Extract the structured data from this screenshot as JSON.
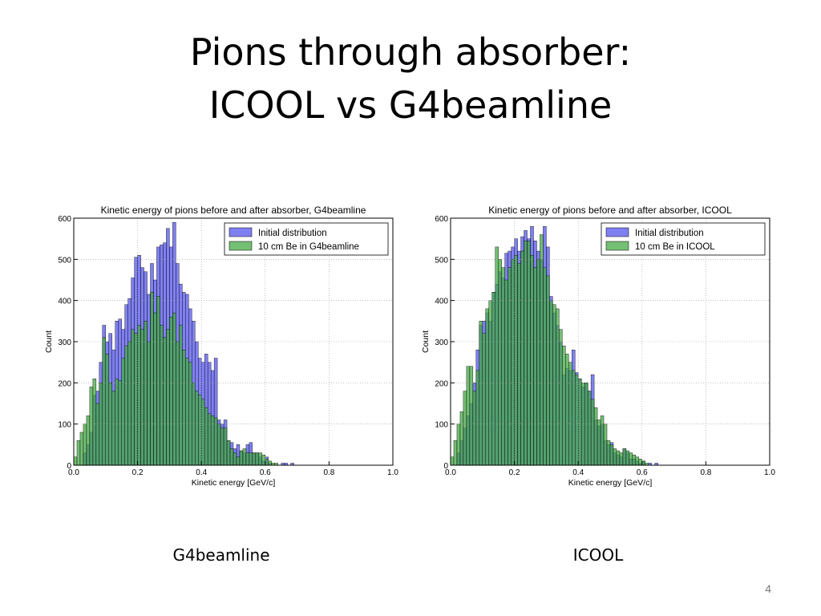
{
  "slide": {
    "title_line1": "Pions through absorber:",
    "title_line2": "ICOOL vs G4beamline",
    "captions": [
      "G4beamline",
      "ICOOL"
    ],
    "page_number": "4"
  },
  "chart_data": [
    {
      "type": "bar",
      "title": "Kinetic energy of pions before and after absorber, G4beamline",
      "xlabel": "Kinetic energy [GeV/c]",
      "ylabel": "Count",
      "xlim": [
        0.0,
        1.0
      ],
      "ylim": [
        0,
        600
      ],
      "xticks": [
        "0.0",
        "0.2",
        "0.4",
        "0.6",
        "0.8",
        "1.0"
      ],
      "yticks": [
        "0",
        "100",
        "200",
        "300",
        "400",
        "500",
        "600"
      ],
      "grid": true,
      "legend_position": "top-right",
      "bin_width": 0.01,
      "x": [
        0.005,
        0.015,
        0.025,
        0.035,
        0.045,
        0.055,
        0.065,
        0.075,
        0.085,
        0.095,
        0.105,
        0.115,
        0.125,
        0.135,
        0.145,
        0.155,
        0.165,
        0.175,
        0.185,
        0.195,
        0.205,
        0.215,
        0.225,
        0.235,
        0.245,
        0.255,
        0.265,
        0.275,
        0.285,
        0.295,
        0.305,
        0.315,
        0.325,
        0.335,
        0.345,
        0.355,
        0.365,
        0.375,
        0.385,
        0.395,
        0.405,
        0.415,
        0.425,
        0.435,
        0.445,
        0.455,
        0.465,
        0.475,
        0.485,
        0.495,
        0.505,
        0.515,
        0.525,
        0.535,
        0.545,
        0.555,
        0.565,
        0.575,
        0.585,
        0.595,
        0.605,
        0.615,
        0.625,
        0.635,
        0.645,
        0.655,
        0.665,
        0.675,
        0.685,
        0.695,
        0.705,
        0.715,
        0.725,
        0.735,
        0.745,
        0.755,
        0.765,
        0.775,
        0.785,
        0.795
      ],
      "series": [
        {
          "name": "Initial distribution",
          "color": "#5555ee",
          "values": [
            0,
            0,
            0,
            30,
            50,
            80,
            170,
            180,
            250,
            340,
            300,
            320,
            280,
            350,
            355,
            330,
            390,
            405,
            455,
            505,
            510,
            480,
            470,
            415,
            490,
            450,
            530,
            535,
            540,
            575,
            530,
            590,
            490,
            440,
            420,
            415,
            380,
            350,
            300,
            260,
            250,
            270,
            250,
            230,
            260,
            110,
            100,
            110,
            60,
            55,
            40,
            50,
            35,
            30,
            50,
            55,
            30,
            30,
            20,
            10,
            20,
            5,
            0,
            0,
            0,
            5,
            5,
            0,
            5,
            0,
            0,
            0,
            0,
            0,
            0,
            0,
            0,
            0,
            0,
            0
          ]
        },
        {
          "name": "10 cm Be in G4beamline",
          "color": "#44aa44",
          "values": [
            20,
            60,
            80,
            100,
            120,
            190,
            210,
            150,
            200,
            310,
            270,
            200,
            180,
            210,
            205,
            260,
            290,
            300,
            330,
            320,
            340,
            330,
            350,
            300,
            420,
            370,
            410,
            340,
            310,
            330,
            360,
            370,
            300,
            340,
            280,
            260,
            250,
            200,
            180,
            170,
            160,
            140,
            125,
            120,
            115,
            100,
            90,
            90,
            60,
            40,
            30,
            20,
            35,
            40,
            30,
            30,
            30,
            30,
            30,
            25,
            15,
            10,
            5,
            5,
            0,
            0,
            0,
            0,
            0,
            0,
            0,
            0,
            0,
            0,
            0,
            0,
            0,
            0,
            0,
            0
          ]
        }
      ]
    },
    {
      "type": "bar",
      "title": "Kinetic energy of pions before and after absorber, ICOOL",
      "xlabel": "Kinetic energy [GeV/c]",
      "ylabel": "Count",
      "xlim": [
        0.0,
        1.0
      ],
      "ylim": [
        0,
        600
      ],
      "xticks": [
        "0.0",
        "0.2",
        "0.4",
        "0.6",
        "0.8",
        "1.0"
      ],
      "yticks": [
        "0",
        "100",
        "200",
        "300",
        "400",
        "500",
        "600"
      ],
      "grid": true,
      "legend_position": "top-right",
      "bin_width": 0.01,
      "x": [
        0.005,
        0.015,
        0.025,
        0.035,
        0.045,
        0.055,
        0.065,
        0.075,
        0.085,
        0.095,
        0.105,
        0.115,
        0.125,
        0.135,
        0.145,
        0.155,
        0.165,
        0.175,
        0.185,
        0.195,
        0.205,
        0.215,
        0.225,
        0.235,
        0.245,
        0.255,
        0.265,
        0.275,
        0.285,
        0.295,
        0.305,
        0.315,
        0.325,
        0.335,
        0.345,
        0.355,
        0.365,
        0.375,
        0.385,
        0.395,
        0.405,
        0.415,
        0.425,
        0.435,
        0.445,
        0.455,
        0.465,
        0.475,
        0.485,
        0.495,
        0.505,
        0.515,
        0.525,
        0.535,
        0.545,
        0.555,
        0.565,
        0.575,
        0.585,
        0.595,
        0.605,
        0.615,
        0.625,
        0.635,
        0.645,
        0.655,
        0.665,
        0.675,
        0.685,
        0.695,
        0.705,
        0.715,
        0.725,
        0.735,
        0.745,
        0.755,
        0.765,
        0.775,
        0.785,
        0.795
      ],
      "series": [
        {
          "name": "Initial distribution",
          "color": "#5555ee",
          "values": [
            0,
            0,
            30,
            60,
            90,
            120,
            150,
            200,
            280,
            340,
            350,
            370,
            350,
            420,
            440,
            470,
            455,
            515,
            520,
            530,
            550,
            520,
            555,
            570,
            550,
            580,
            545,
            520,
            500,
            580,
            530,
            410,
            370,
            340,
            300,
            220,
            235,
            230,
            280,
            225,
            210,
            190,
            200,
            180,
            220,
            110,
            95,
            100,
            60,
            50,
            55,
            30,
            25,
            20,
            40,
            30,
            15,
            15,
            10,
            5,
            10,
            0,
            5,
            0,
            5,
            0,
            0,
            0,
            0,
            0,
            0,
            0,
            0,
            0,
            0,
            0,
            0,
            0,
            0,
            0
          ]
        },
        {
          "name": "10 cm Be in ICOOL",
          "color": "#44aa44",
          "values": [
            20,
            60,
            100,
            130,
            180,
            240,
            240,
            180,
            230,
            350,
            320,
            380,
            400,
            420,
            530,
            500,
            480,
            450,
            480,
            500,
            510,
            490,
            520,
            545,
            545,
            510,
            480,
            500,
            560,
            480,
            460,
            400,
            390,
            380,
            330,
            290,
            270,
            250,
            230,
            220,
            210,
            200,
            200,
            180,
            160,
            140,
            110,
            120,
            100,
            60,
            50,
            40,
            35,
            30,
            40,
            35,
            30,
            25,
            20,
            15,
            10,
            5,
            0,
            0,
            0,
            0,
            0,
            0,
            0,
            0,
            0,
            0,
            0,
            0,
            0,
            0,
            0,
            0,
            0,
            0
          ]
        }
      ]
    }
  ]
}
